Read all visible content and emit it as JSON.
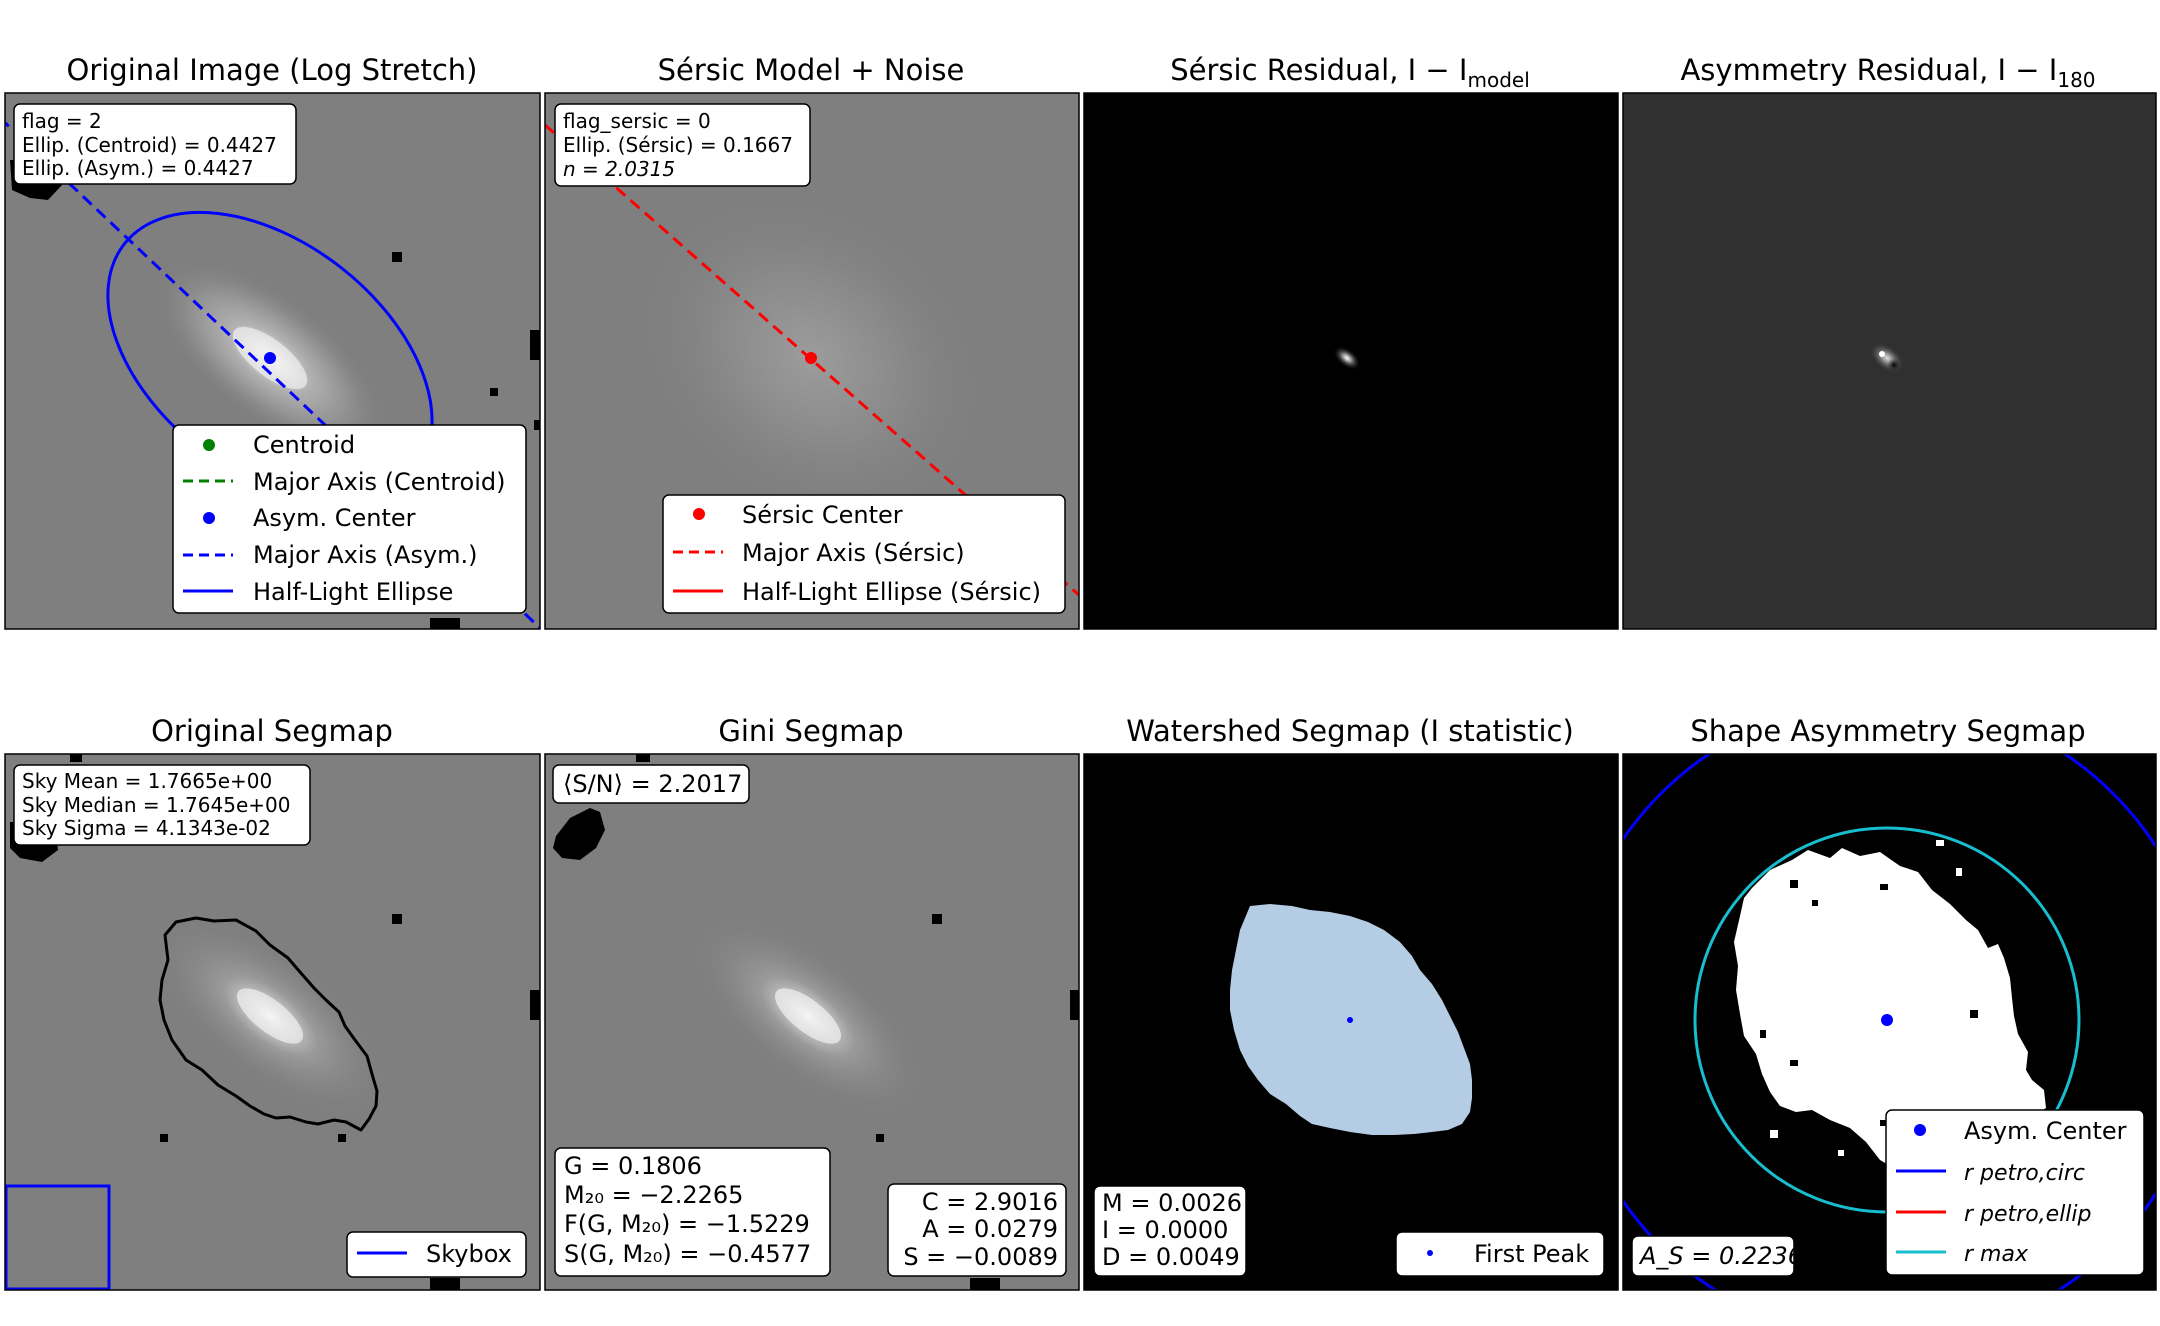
{
  "figure": {
    "panels": [
      {
        "id": "original-image",
        "title": "Original Image (Log Stretch)",
        "infobox": [
          "flag = 2",
          "Ellip. (Centroid) = 0.4427",
          "Ellip. (Asym.) = 0.4427"
        ],
        "legend": [
          "Centroid",
          "Major Axis (Centroid)",
          "Asym. Center",
          "Major Axis (Asym.)",
          "Half-Light Ellipse"
        ]
      },
      {
        "id": "sersic-model",
        "title": "Sérsic Model + Noise",
        "infobox": [
          "flag_sersic = 0",
          "Ellip. (Sérsic) = 0.1667",
          "n = 2.0315"
        ],
        "legend": [
          "Sérsic Center",
          "Major Axis (Sérsic)",
          "Half-Light Ellipse (Sérsic)"
        ]
      },
      {
        "id": "sersic-residual",
        "title_main": "Sérsic Residual, I − I",
        "title_sub": "model"
      },
      {
        "id": "asymmetry-residual",
        "title_main": "Asymmetry Residual, I − I",
        "title_sub": "180"
      },
      {
        "id": "original-segmap",
        "title": "Original Segmap",
        "infobox": [
          "Sky Mean = 1.7665e+00",
          "Sky Median = 1.7645e+00",
          "Sky Sigma = 4.1343e-02"
        ],
        "legend": [
          "Skybox"
        ]
      },
      {
        "id": "gini-segmap",
        "title": "Gini Segmap",
        "sn_label": "⟨S/N⟩ = 2.2017",
        "stats_left": [
          "G = 0.1806",
          "M₂₀ = −2.2265",
          "F(G, M₂₀) = −1.5229",
          "S(G, M₂₀) = −0.4577"
        ],
        "stats_right": [
          "C = 2.9016",
          "A = 0.0279",
          "S = −0.0089"
        ]
      },
      {
        "id": "watershed-segmap",
        "title": "Watershed Segmap (I statistic)",
        "stats": [
          "M = 0.0026",
          "I = 0.0000",
          "D = 0.0049"
        ],
        "legend": [
          "First Peak"
        ]
      },
      {
        "id": "shape-asymmetry-segmap",
        "title": "Shape Asymmetry Segmap",
        "as_label": "A_S = 0.2236",
        "legend": [
          "Asym. Center",
          "r petro,circ",
          "r petro,ellip",
          "r max"
        ]
      }
    ],
    "colors": {
      "blue": "#0000ff",
      "green": "#008000",
      "red": "#ff0000",
      "cyan": "#17becf",
      "sky_gray": "#7f7f7f",
      "watershed_fill": "#b4cce4"
    }
  }
}
